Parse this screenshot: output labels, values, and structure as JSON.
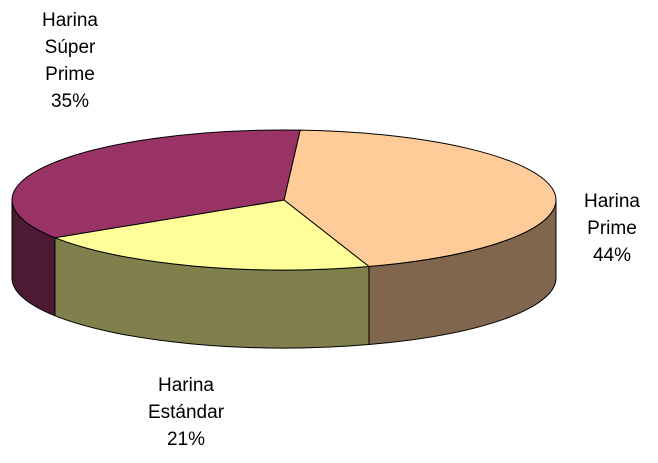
{
  "chart_data": {
    "type": "pie",
    "categories": [
      "Harina Prime",
      "Harina Estándar",
      "Harina Súper Prime"
    ],
    "values": [
      44,
      21,
      35
    ],
    "value_labels": [
      "44%",
      "21%",
      "35%"
    ],
    "colors": [
      "#ffcc99",
      "#ffff99",
      "#993366"
    ]
  }
}
